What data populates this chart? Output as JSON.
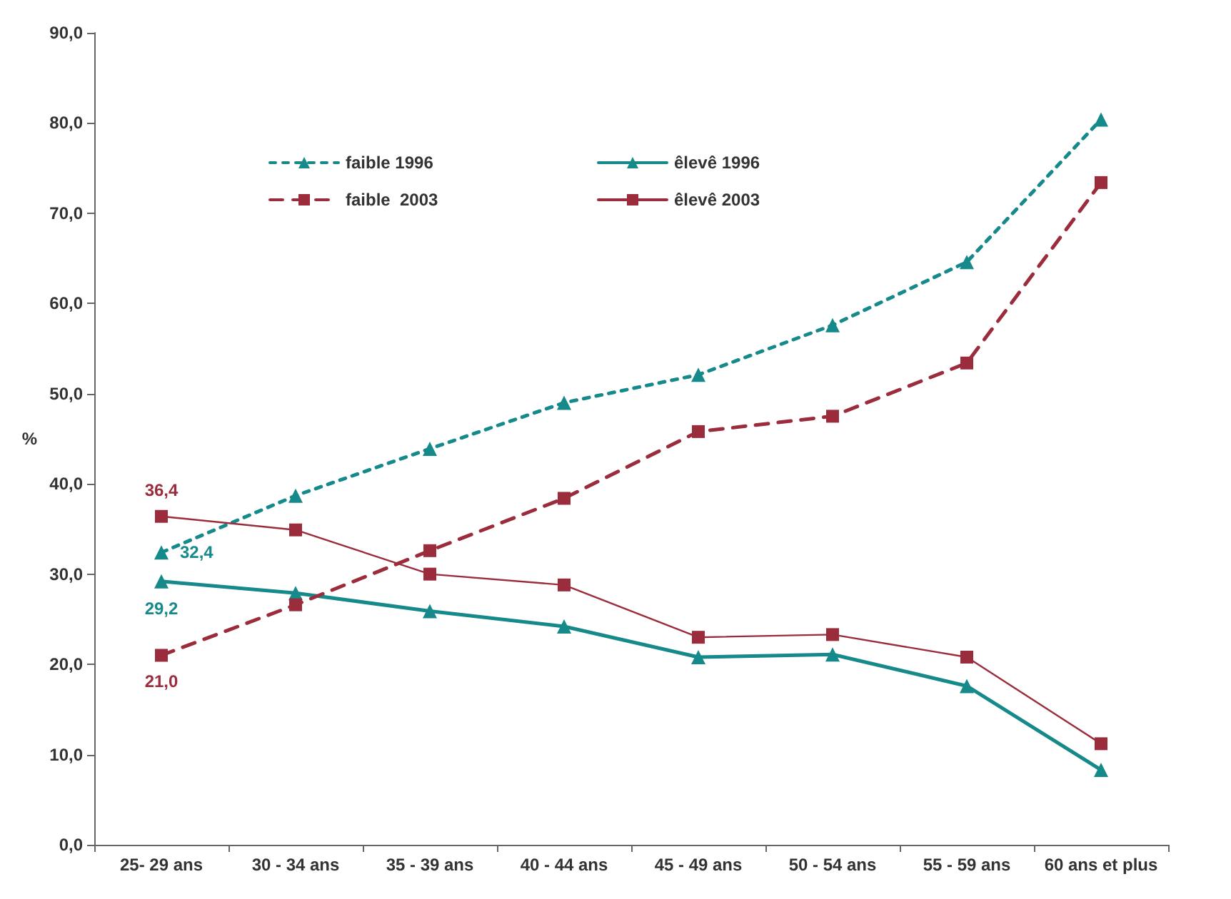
{
  "chart_data": {
    "type": "line",
    "ylabel": "%",
    "categories": [
      "25- 29 ans",
      "30 - 34 ans",
      "35 - 39 ans",
      "40 - 44 ans",
      "45 - 49 ans",
      "50 - 54 ans",
      "55 - 59 ans",
      "60 ans et plus"
    ],
    "series": [
      {
        "name": "faible 1996",
        "color": "#16898a",
        "marker": "triangle",
        "line_style": "dotted",
        "values": [
          32.4,
          38.7,
          43.9,
          49.0,
          52.1,
          57.6,
          64.6,
          80.4
        ],
        "value_labels": [
          "32,4",
          null,
          null,
          null,
          null,
          null,
          null,
          null
        ]
      },
      {
        "name": "êlevê 1996",
        "color": "#16898a",
        "marker": "triangle",
        "line_style": "solid",
        "values": [
          29.2,
          27.9,
          25.9,
          24.2,
          20.8,
          21.1,
          17.6,
          8.3
        ],
        "value_labels": [
          "29,2",
          null,
          null,
          null,
          null,
          null,
          null,
          null
        ]
      },
      {
        "name": "faible  2003",
        "color": "#9b2c3c",
        "marker": "square",
        "line_style": "dashed",
        "values": [
          21.0,
          26.6,
          32.6,
          38.4,
          45.8,
          47.5,
          53.4,
          73.4
        ],
        "value_labels": [
          "21,0",
          null,
          null,
          null,
          null,
          null,
          null,
          null
        ]
      },
      {
        "name": "êlevê 2003",
        "color": "#9b2c3c",
        "marker": "square",
        "line_style": "solid",
        "values": [
          36.4,
          34.9,
          30.0,
          28.8,
          23.0,
          23.3,
          20.8,
          11.2
        ],
        "value_labels": [
          "36,4",
          null,
          null,
          null,
          null,
          null,
          null,
          null
        ]
      }
    ],
    "ylim": [
      0,
      90
    ],
    "yticks": [
      {
        "value": 0,
        "label": "0,0"
      },
      {
        "value": 10,
        "label": "10,0"
      },
      {
        "value": 20,
        "label": "20,0"
      },
      {
        "value": 30,
        "label": "30,0"
      },
      {
        "value": 40,
        "label": "40,0"
      },
      {
        "value": 50,
        "label": "50,0"
      },
      {
        "value": 60,
        "label": "60,0"
      },
      {
        "value": 70,
        "label": "70,0"
      },
      {
        "value": 80,
        "label": "80,0"
      },
      {
        "value": 90,
        "label": "90,0"
      }
    ],
    "grid": false,
    "legend": "top"
  }
}
